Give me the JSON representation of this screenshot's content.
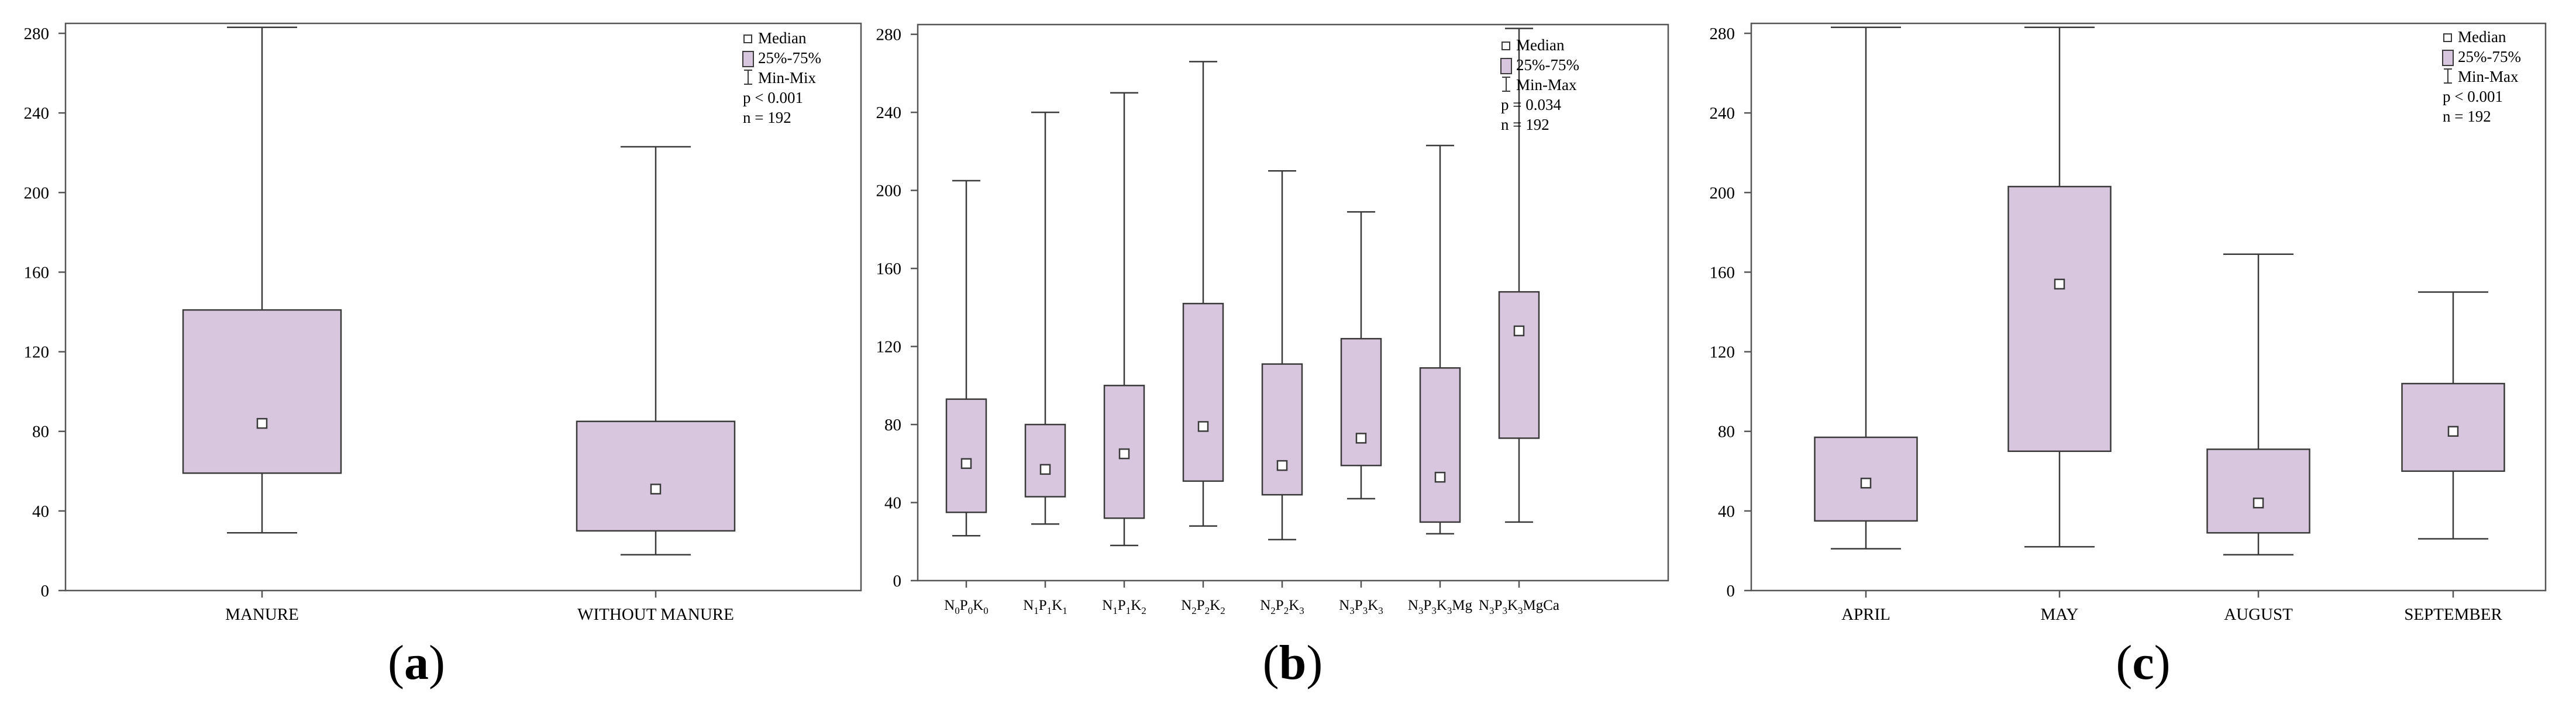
{
  "colors": {
    "box_fill": "#d7c6de",
    "line": "#3a3a3a",
    "frame": "#555555"
  },
  "captions": [
    "(a)",
    "(b)",
    "(c)"
  ],
  "caption_letters": [
    "a",
    "b",
    "c"
  ],
  "chart_data": [
    {
      "type": "boxplot",
      "title": "",
      "xlabel": "",
      "ylabel": "",
      "ylim": [
        0,
        285
      ],
      "yticks": [
        0,
        40,
        80,
        120,
        160,
        200,
        240,
        280
      ],
      "categories": [
        "MANURE",
        "WITHOUT MANURE"
      ],
      "series": [
        {
          "name": "MANURE",
          "min": 29,
          "q1": 59,
          "median": 84,
          "q3": 141,
          "max": 283
        },
        {
          "name": "WITHOUT MANURE",
          "min": 18,
          "q1": 30,
          "median": 51,
          "q3": 85,
          "max": 223
        }
      ],
      "legend": {
        "items": [
          "Median",
          "25%-75%",
          "Min-Mix"
        ],
        "stats": [
          "p < 0.001",
          "n = 192"
        ],
        "position": "top-right"
      }
    },
    {
      "type": "boxplot",
      "title": "",
      "xlabel": "",
      "ylabel": "",
      "ylim": [
        0,
        285
      ],
      "yticks": [
        0,
        40,
        80,
        120,
        160,
        200,
        240,
        280
      ],
      "categories": [
        "N0P0K0",
        "N1P1K1",
        "N1P1K2",
        "N2P2K2",
        "N2P2K3",
        "N3P3K3",
        "N3P3K3Mg",
        "N3P3K3MgCa"
      ],
      "category_labels": [
        [
          [
            "N",
            ""
          ],
          [
            "0",
            "sub"
          ],
          [
            "P",
            ""
          ],
          [
            "0",
            "sub"
          ],
          [
            "K",
            ""
          ],
          [
            "0",
            "sub"
          ]
        ],
        [
          [
            "N",
            ""
          ],
          [
            "1",
            "sub"
          ],
          [
            "P",
            ""
          ],
          [
            "1",
            "sub"
          ],
          [
            "K",
            ""
          ],
          [
            "1",
            "sub"
          ]
        ],
        [
          [
            "N",
            ""
          ],
          [
            "1",
            "sub"
          ],
          [
            "P",
            ""
          ],
          [
            "1",
            "sub"
          ],
          [
            "K",
            ""
          ],
          [
            "2",
            "sub"
          ]
        ],
        [
          [
            "N",
            ""
          ],
          [
            "2",
            "sub"
          ],
          [
            "P",
            ""
          ],
          [
            "2",
            "sub"
          ],
          [
            "K",
            ""
          ],
          [
            "2",
            "sub"
          ]
        ],
        [
          [
            "N",
            ""
          ],
          [
            "2",
            "sub"
          ],
          [
            "P",
            ""
          ],
          [
            "2",
            "sub"
          ],
          [
            "K",
            ""
          ],
          [
            "3",
            "sub"
          ]
        ],
        [
          [
            "N",
            ""
          ],
          [
            "3",
            "sub"
          ],
          [
            "P",
            ""
          ],
          [
            "3",
            "sub"
          ],
          [
            "K",
            ""
          ],
          [
            "3",
            "sub"
          ]
        ],
        [
          [
            "N",
            ""
          ],
          [
            "3",
            "sub"
          ],
          [
            "P",
            ""
          ],
          [
            "3",
            "sub"
          ],
          [
            "K",
            ""
          ],
          [
            "3",
            "sub"
          ],
          [
            "Mg",
            ""
          ]
        ],
        [
          [
            "N",
            ""
          ],
          [
            "3",
            "sub"
          ],
          [
            "P",
            ""
          ],
          [
            "3",
            "sub"
          ],
          [
            "K",
            ""
          ],
          [
            "3",
            "sub"
          ],
          [
            "MgCa",
            ""
          ]
        ]
      ],
      "series": [
        {
          "name": "N0P0K0",
          "min": 23,
          "q1": 35,
          "median": 60,
          "q3": 93,
          "max": 205
        },
        {
          "name": "N1P1K1",
          "min": 29,
          "q1": 43,
          "median": 57,
          "q3": 80,
          "max": 240
        },
        {
          "name": "N1P1K2",
          "min": 18,
          "q1": 32,
          "median": 65,
          "q3": 100,
          "max": 250
        },
        {
          "name": "N2P2K2",
          "min": 28,
          "q1": 51,
          "median": 79,
          "q3": 142,
          "max": 266
        },
        {
          "name": "N2P2K3",
          "min": 21,
          "q1": 44,
          "median": 59,
          "q3": 111,
          "max": 210
        },
        {
          "name": "N3P3K3",
          "min": 42,
          "q1": 59,
          "median": 73,
          "q3": 124,
          "max": 189
        },
        {
          "name": "N3P3K3Mg",
          "min": 24,
          "q1": 30,
          "median": 53,
          "q3": 109,
          "max": 223
        },
        {
          "name": "N3P3K3MgCa",
          "min": 30,
          "q1": 73,
          "median": 128,
          "q3": 148,
          "max": 283
        }
      ],
      "legend": {
        "items": [
          "Median",
          "25%-75%",
          "Min-Max"
        ],
        "stats": [
          "p = 0.034",
          "n = 192"
        ],
        "position": "top-right"
      }
    },
    {
      "type": "boxplot",
      "title": "",
      "xlabel": "",
      "ylabel": "",
      "ylim": [
        0,
        285
      ],
      "yticks": [
        0,
        40,
        80,
        120,
        160,
        200,
        240,
        280
      ],
      "categories": [
        "APRIL",
        "MAY",
        "AUGUST",
        "SEPTEMBER"
      ],
      "series": [
        {
          "name": "APRIL",
          "min": 21,
          "q1": 35,
          "median": 54,
          "q3": 77,
          "max": 283
        },
        {
          "name": "MAY",
          "min": 22,
          "q1": 70,
          "median": 154,
          "q3": 203,
          "max": 283
        },
        {
          "name": "AUGUST",
          "min": 18,
          "q1": 29,
          "median": 44,
          "q3": 71,
          "max": 169
        },
        {
          "name": "SEPTEMBER",
          "min": 26,
          "q1": 60,
          "median": 80,
          "q3": 104,
          "max": 150
        }
      ],
      "legend": {
        "items": [
          "Median",
          "25%-75%",
          "Min-Max"
        ],
        "stats": [
          "p < 0.001",
          "n = 192"
        ],
        "position": "top-right"
      }
    }
  ]
}
